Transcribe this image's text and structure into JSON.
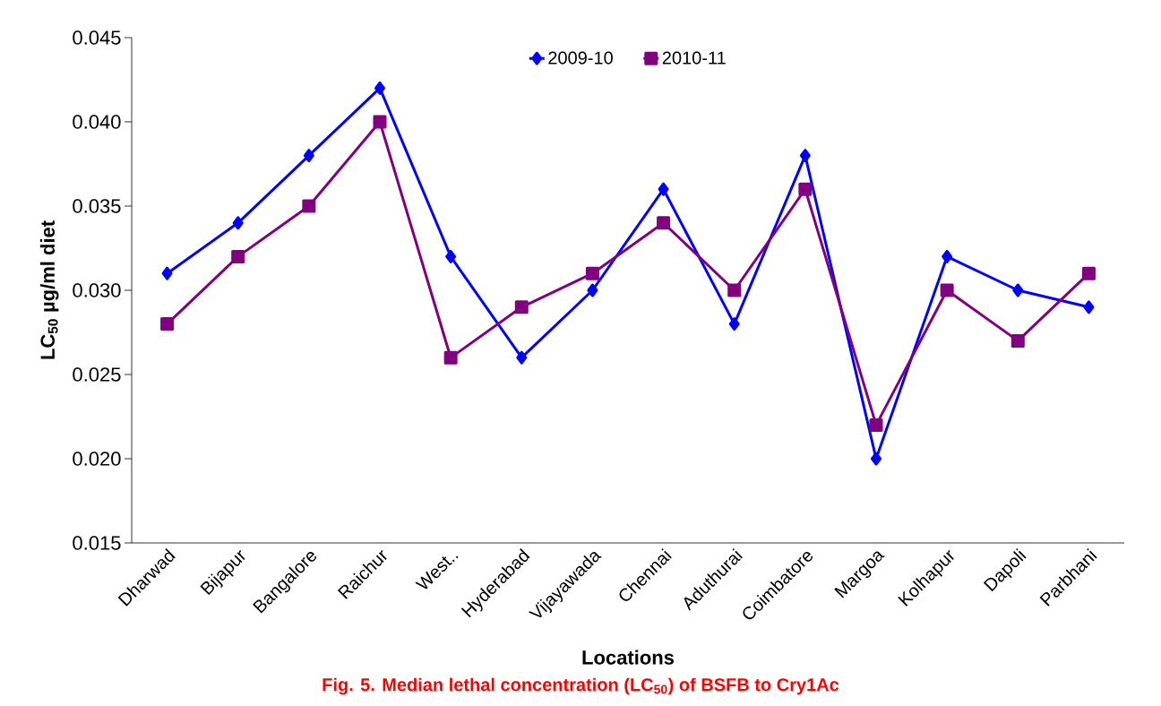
{
  "chart_data": {
    "type": "line",
    "title": "Fig.  5. Median lethal concentration (LC$_{50}$) of BSFB to Cry1Ac",
    "xlabel": "Locations",
    "ylabel": "LC$_{50}$ µg/ml diet",
    "categories": [
      "Dharwad",
      "Bijapur",
      "Bangalore",
      "Raichur",
      "West..",
      "Hyderabad",
      "Vijayawada",
      "Chennai",
      "Aduthurai",
      "Coimbatore",
      "Margoa",
      "Kolhapur",
      "Dapoli",
      "Parbhani"
    ],
    "series": [
      {
        "name": "2009-10",
        "color": "#0000ff",
        "marker": "diamond",
        "values": [
          0.031,
          0.034,
          0.038,
          0.042,
          0.032,
          0.026,
          0.03,
          0.036,
          0.028,
          0.038,
          0.02,
          0.032,
          0.03,
          0.029
        ]
      },
      {
        "name": "2010-11",
        "color": "#800080",
        "marker": "square",
        "values": [
          0.028,
          0.032,
          0.035,
          0.04,
          0.026,
          0.029,
          0.031,
          0.034,
          0.03,
          0.036,
          0.022,
          0.03,
          0.027,
          0.031
        ]
      }
    ],
    "ylim": [
      0.015,
      0.045
    ],
    "yticks": [
      {
        "value": 0.015,
        "label": "0.015"
      },
      {
        "value": 0.02,
        "label": "0.020"
      },
      {
        "value": 0.025,
        "label": "0.025"
      },
      {
        "value": 0.03,
        "label": "0.030"
      },
      {
        "value": 0.035,
        "label": "0.035"
      },
      {
        "value": 0.04,
        "label": "0.040"
      },
      {
        "value": 0.045,
        "label": "0.045"
      }
    ],
    "grid": false,
    "legend": "top",
    "line_style": "solid"
  }
}
